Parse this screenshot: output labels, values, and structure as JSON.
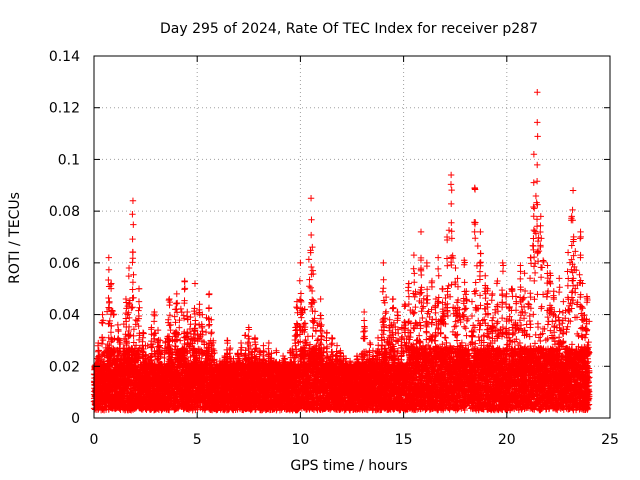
{
  "colors": {
    "marker": "#ff0000",
    "grid": "#a0a0a0",
    "frame": "#000000",
    "background": "#ffffff"
  },
  "chart_data": {
    "type": "scatter",
    "title": "Day 295 of 2024, Rate Of TEC Index for receiver p287",
    "xlabel": "GPS time / hours",
    "ylabel": "ROTI / TECUs",
    "xlim": [
      0,
      25
    ],
    "ylim": [
      0,
      0.14
    ],
    "x_ticks": [
      0,
      5,
      10,
      15,
      20,
      25
    ],
    "y_ticks": [
      0,
      0.02,
      0.04,
      0.06,
      0.08,
      0.1,
      0.12,
      0.14
    ],
    "x_tick_labels": [
      "0",
      "5",
      "10",
      "15",
      "20",
      "25"
    ],
    "y_tick_labels": [
      "0",
      "0.02",
      "0.04",
      "0.06",
      "0.08",
      "0.1",
      "0.12",
      "0.14"
    ],
    "grid": true,
    "marker": "+",
    "series": [
      {
        "name": "ROTI",
        "x": [
          0.1,
          0.3,
          0.5,
          0.7,
          0.9,
          1.1,
          1.3,
          1.5,
          1.7,
          1.9,
          2.1,
          2.3,
          2.5,
          2.7,
          2.9,
          3.1,
          3.3,
          3.5,
          3.7,
          3.9,
          4.1,
          4.3,
          4.5,
          4.7,
          4.9,
          5.1,
          5.3,
          5.5,
          5.7,
          5.9,
          6.1,
          6.3,
          6.5,
          6.7,
          6.9,
          7.1,
          7.3,
          7.5,
          7.7,
          7.9,
          8.1,
          8.3,
          8.5,
          8.7,
          8.9,
          9.1,
          9.3,
          9.5,
          9.7,
          9.9,
          10.1,
          10.3,
          10.5,
          10.7,
          10.9,
          11.1,
          11.3,
          11.5,
          11.7,
          11.9,
          12.1,
          12.3,
          12.5,
          12.7,
          12.9,
          13.1,
          13.3,
          13.5,
          13.7,
          13.9,
          14.1,
          14.3,
          14.5,
          14.7,
          14.9,
          15.1,
          15.3,
          15.5,
          15.7,
          15.9,
          16.1,
          16.3,
          16.5,
          16.7,
          16.9,
          17.1,
          17.3,
          17.5,
          17.7,
          17.9,
          18.1,
          18.3,
          18.5,
          18.7,
          18.9,
          19.1,
          19.3,
          19.5,
          19.7,
          19.9,
          20.1,
          20.3,
          20.5,
          20.7,
          20.9,
          21.1,
          21.3,
          21.5,
          21.7,
          21.9,
          22.1,
          22.3,
          22.5,
          22.7,
          22.9,
          23.1,
          23.3,
          23.5,
          23.7,
          23.9
        ],
        "y": [
          0.023,
          0.029,
          0.04,
          0.062,
          0.052,
          0.036,
          0.03,
          0.046,
          0.058,
          0.084,
          0.05,
          0.033,
          0.028,
          0.035,
          0.041,
          0.034,
          0.03,
          0.038,
          0.046,
          0.042,
          0.048,
          0.053,
          0.041,
          0.039,
          0.052,
          0.044,
          0.04,
          0.048,
          0.038,
          0.026,
          0.022,
          0.024,
          0.03,
          0.027,
          0.025,
          0.029,
          0.032,
          0.035,
          0.031,
          0.027,
          0.026,
          0.028,
          0.029,
          0.025,
          0.026,
          0.024,
          0.023,
          0.026,
          0.035,
          0.045,
          0.06,
          0.042,
          0.085,
          0.057,
          0.046,
          0.036,
          0.033,
          0.031,
          0.028,
          0.026,
          0.024,
          0.023,
          0.022,
          0.024,
          0.025,
          0.041,
          0.029,
          0.026,
          0.031,
          0.034,
          0.06,
          0.038,
          0.046,
          0.041,
          0.035,
          0.044,
          0.052,
          0.063,
          0.048,
          0.072,
          0.06,
          0.053,
          0.046,
          0.062,
          0.05,
          0.07,
          0.094,
          0.058,
          0.054,
          0.061,
          0.049,
          0.045,
          0.089,
          0.072,
          0.055,
          0.05,
          0.048,
          0.053,
          0.06,
          0.048,
          0.043,
          0.05,
          0.047,
          0.059,
          0.056,
          0.062,
          0.102,
          0.126,
          0.078,
          0.059,
          0.056,
          0.049,
          0.054,
          0.045,
          0.064,
          0.078,
          0.088,
          0.072,
          0.052,
          0.047
        ]
      }
    ]
  }
}
